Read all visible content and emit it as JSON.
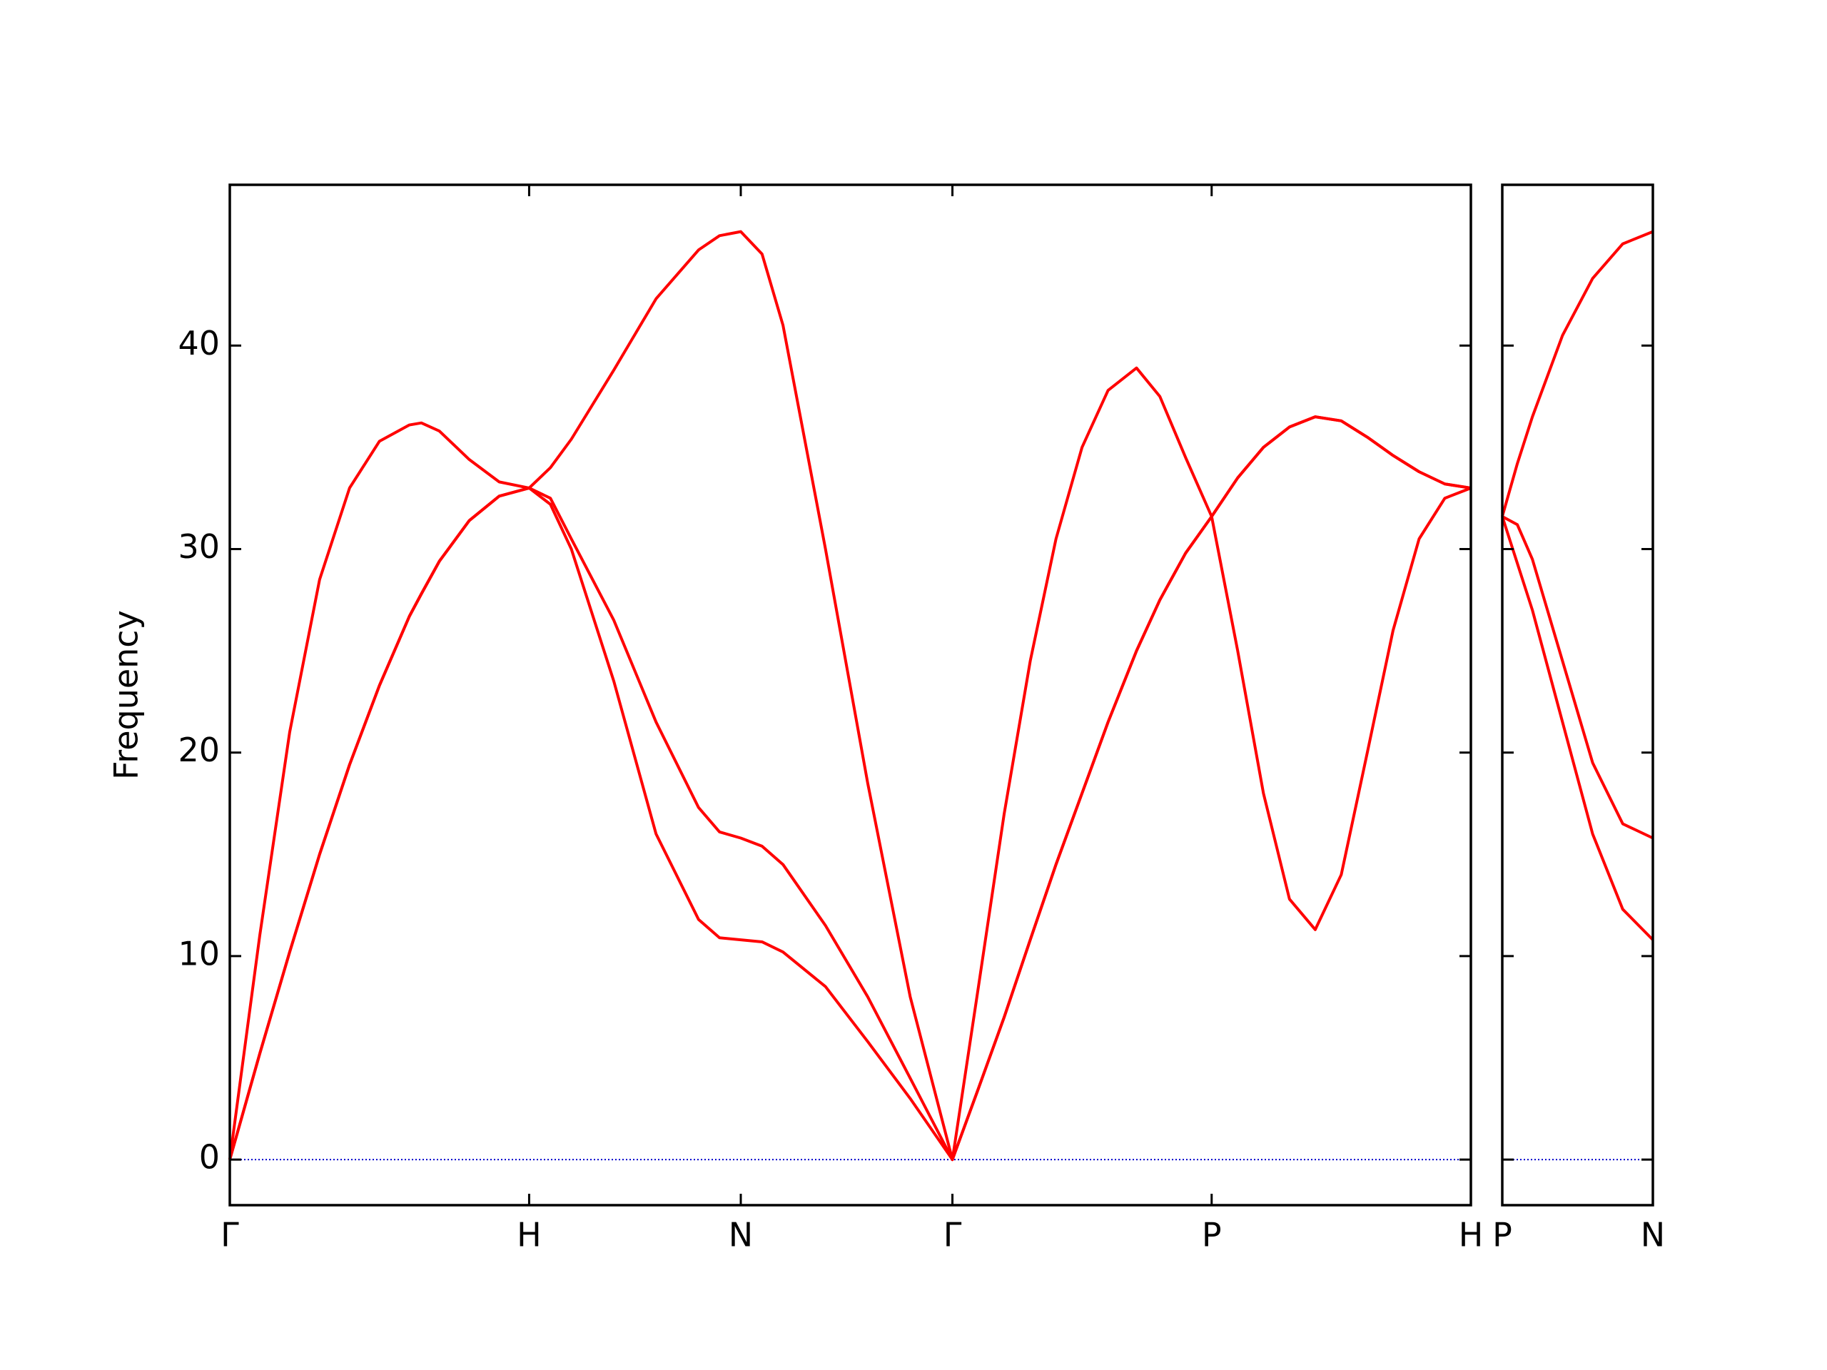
{
  "chart_data": [
    {
      "type": "line",
      "ylabel": "Frequency",
      "x": [
        0,
        0.1,
        0.2,
        0.3,
        0.4,
        0.5,
        0.6,
        0.64,
        0.7,
        0.8,
        0.9,
        1.0,
        1.071,
        1.141,
        1.283,
        1.424,
        1.566,
        1.636,
        1.707,
        1.778,
        1.848,
        1.99,
        2.131,
        2.273,
        2.414,
        2.501,
        2.587,
        2.674,
        2.76,
        2.847,
        2.934,
        3.029,
        3.107,
        3.193,
        3.28,
        3.367,
        3.453,
        3.54,
        3.626,
        3.713,
        3.8,
        3.886,
        3.973,
        4.059,
        4.146
      ],
      "series": [
        {
          "color": "#ff0000",
          "values": [
            0,
            11,
            21,
            28.5,
            33,
            35.3,
            36.1,
            36.2,
            35.8,
            34.4,
            33.3,
            33.0,
            34.0,
            35.4,
            38.8,
            42.3,
            44.7,
            45.4,
            45.6,
            44.5,
            41,
            30,
            18.5,
            8,
            0,
            8.5,
            17,
            24.5,
            30.5,
            35,
            37.8,
            38.9,
            37.5,
            34.5,
            31.6,
            33.5,
            35,
            36,
            36.5,
            36.3,
            35.5,
            34.6,
            33.8,
            33.2,
            33
          ]
        },
        {
          "color": "#ff0000",
          "values": [
            0,
            5.2,
            10.2,
            15,
            19.4,
            23.3,
            26.7,
            27.8,
            29.4,
            31.4,
            32.6,
            33.0,
            32.5,
            30.5,
            26.5,
            21.5,
            17.3,
            16.1,
            15.8,
            15.4,
            14.5,
            11.5,
            8,
            4,
            0,
            3.5,
            7,
            10.8,
            14.5,
            18,
            21.5,
            25,
            27.5,
            29.8,
            31.6,
            33.5,
            35,
            36,
            36.5,
            36.3,
            35.5,
            34.6,
            33.8,
            33.2,
            33
          ]
        },
        {
          "color": "#ff0000",
          "values": [
            0,
            5.2,
            10.2,
            15,
            19.4,
            23.3,
            26.7,
            27.8,
            29.4,
            31.4,
            32.6,
            33.0,
            32.2,
            30,
            23.5,
            16,
            11.8,
            10.9,
            10.8,
            10.7,
            10.2,
            8.5,
            5.8,
            3,
            0,
            3.5,
            7,
            10.8,
            14.5,
            18,
            21.5,
            25,
            27.5,
            29.8,
            31.6,
            25,
            18,
            12.8,
            11.3,
            14,
            20,
            26,
            30.5,
            32.5,
            33
          ]
        }
      ],
      "xlim": [
        0,
        4.146
      ],
      "xticks": [
        {
          "value": 0,
          "label": "Γ"
        },
        {
          "value": 1,
          "label": "H"
        },
        {
          "value": 1.707,
          "label": "N"
        },
        {
          "value": 2.414,
          "label": "Γ"
        },
        {
          "value": 3.28,
          "label": "P"
        },
        {
          "value": 4.146,
          "label": "H"
        }
      ],
      "ylim": [
        -2.24,
        47.9
      ],
      "yticks": [
        0,
        10,
        20,
        30,
        40
      ],
      "zero_line": true,
      "zero_line_color": "#0000cc"
    },
    {
      "type": "line",
      "x": [
        0,
        0.05,
        0.1,
        0.2,
        0.3,
        0.4,
        0.5
      ],
      "series": [
        {
          "color": "#ff0000",
          "values": [
            31.6,
            34.2,
            36.5,
            40.5,
            43.3,
            45,
            45.6
          ]
        },
        {
          "color": "#ff0000",
          "values": [
            31.6,
            31.2,
            29.5,
            24.5,
            19.5,
            16.5,
            15.8
          ]
        },
        {
          "color": "#ff0000",
          "values": [
            31.6,
            29.3,
            27,
            21.5,
            16,
            12.3,
            10.8
          ]
        }
      ],
      "xlim": [
        0,
        0.5
      ],
      "xticks": [
        {
          "value": 0,
          "label": "P"
        },
        {
          "value": 0.5,
          "label": "N"
        }
      ],
      "ylim": [
        -2.24,
        47.9
      ],
      "yticks": [
        0,
        10,
        20,
        30,
        40
      ],
      "zero_line": true,
      "zero_line_color": "#0000cc"
    }
  ]
}
